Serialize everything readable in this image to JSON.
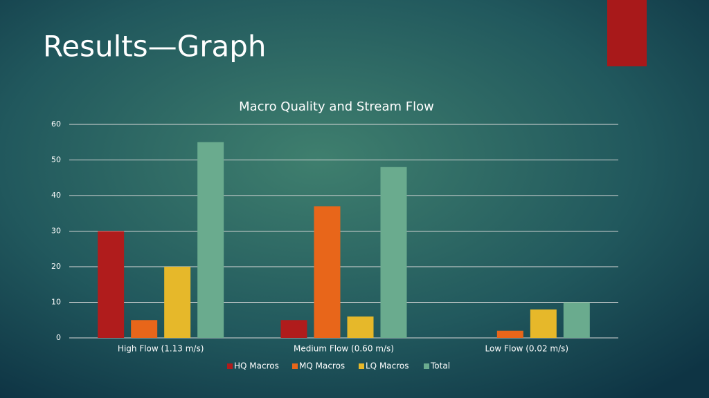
{
  "slide": {
    "title": "Results—Graph"
  },
  "chart_data": {
    "type": "bar",
    "title": "Macro Quality and Stream Flow",
    "categories": [
      "High Flow (1.13 m/s)",
      "Medium Flow (0.60 m/s)",
      "Low Flow (0.02 m/s)"
    ],
    "series": [
      {
        "name": "HQ Macros",
        "color": "#b01c1c",
        "values": [
          30,
          5,
          0
        ]
      },
      {
        "name": "MQ Macros",
        "color": "#e8661a",
        "values": [
          5,
          37,
          2
        ]
      },
      {
        "name": "LQ Macros",
        "color": "#e6b82a",
        "values": [
          20,
          6,
          8
        ]
      },
      {
        "name": "Total",
        "color": "#6aab8e",
        "values": [
          55,
          48,
          10
        ]
      }
    ],
    "ylim": [
      0,
      60
    ],
    "yticks": [
      0,
      10,
      20,
      30,
      40,
      50,
      60
    ],
    "grid": true,
    "legend": "bottom"
  }
}
